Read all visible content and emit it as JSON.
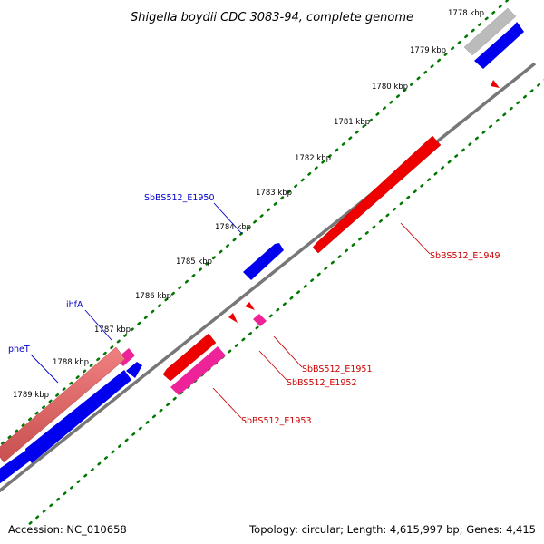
{
  "title": "Shigella boydii CDC 3083-94, complete genome",
  "footer": {
    "accession": "Accession: NC_010658",
    "summary": "Topology: circular; Length: 4,615,997 bp; Genes: 4,415"
  },
  "kbp_labels": [
    "1778 kbp",
    "1779 kbp",
    "1780 kbp",
    "1781 kbp",
    "1782 kbp",
    "1783 kbp",
    "1784 kbp",
    "1785 kbp",
    "1786 kbp",
    "1787 kbp",
    "1788 kbp",
    "1789 kbp"
  ],
  "gene_labels": [
    {
      "text": "SbBS512_E1950",
      "color": "#0000cc"
    },
    {
      "text": "ihfA",
      "color": "#0000cc"
    },
    {
      "text": "pheT",
      "color": "#0000cc"
    },
    {
      "text": "SbBS512_E1949",
      "color": "#cc0000"
    },
    {
      "text": "SbBS512_E1951",
      "color": "#cc0000"
    },
    {
      "text": "SbBS512_E1952",
      "color": "#cc0000"
    },
    {
      "text": "SbBS512_E1953",
      "color": "#cc0000"
    }
  ],
  "colors": {
    "forward_gene": "#0000ee",
    "reverse_gene": "#ee0000",
    "rna_gene": "#ee2299",
    "other_gene": "#bbbbbb",
    "backbone": "#777777",
    "tick": "#007700"
  }
}
